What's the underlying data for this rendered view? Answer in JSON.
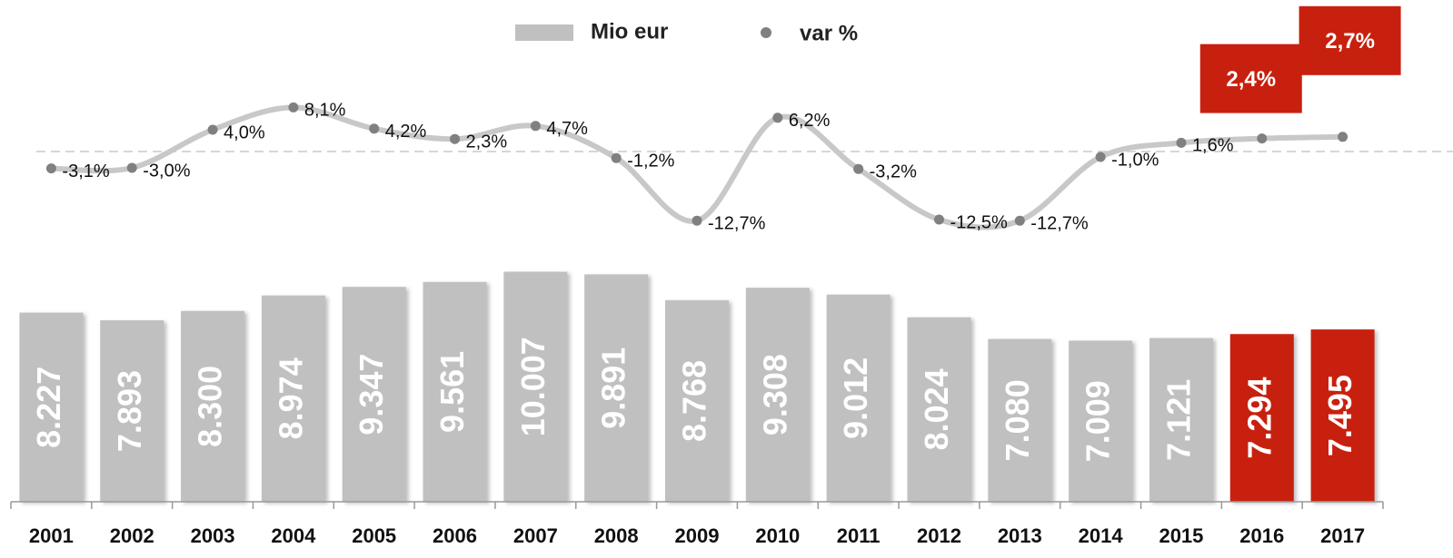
{
  "chart_data": {
    "type": "bar",
    "categories": [
      "2001",
      "2002",
      "2003",
      "2004",
      "2005",
      "2006",
      "2007",
      "2008",
      "2009",
      "2010",
      "2011",
      "2012",
      "2013",
      "2014",
      "2015",
      "2016",
      "2017"
    ],
    "series": [
      {
        "name": "Mio eur",
        "type": "bar",
        "color": "#c0c0c0",
        "colors": [
          "#c0c0c0",
          "#c0c0c0",
          "#c0c0c0",
          "#c0c0c0",
          "#c0c0c0",
          "#c0c0c0",
          "#c0c0c0",
          "#c0c0c0",
          "#c0c0c0",
          "#c0c0c0",
          "#c0c0c0",
          "#c0c0c0",
          "#c0c0c0",
          "#c0c0c0",
          "#c0c0c0",
          "#c8200e",
          "#c8200e"
        ],
        "values": [
          8227,
          7893,
          8300,
          8974,
          9347,
          9561,
          10007,
          9891,
          8768,
          9308,
          9012,
          8024,
          7080,
          7009,
          7121,
          7294,
          7495
        ],
        "value_labels": [
          "8.227",
          "7.893",
          "8.300",
          "8.974",
          "9.347",
          "9.561",
          "10.007",
          "9.891",
          "8.768",
          "9.308",
          "9.012",
          "8.024",
          "7.080",
          "7.009",
          "7.121",
          "7.294",
          "7.495"
        ]
      },
      {
        "name": "var %",
        "type": "line",
        "axis": "y2",
        "color": "#c8c8c8",
        "marker_color": "#808080",
        "values": [
          -3.1,
          -3.0,
          4.0,
          8.1,
          4.2,
          2.3,
          4.7,
          -1.2,
          -12.7,
          6.2,
          -3.2,
          -12.5,
          -12.7,
          -1.0,
          1.6,
          2.4,
          2.7
        ],
        "value_labels": [
          "-3,1%",
          "-3,0%",
          "4,0%",
          "8,1%",
          "4,2%",
          "2,3%",
          "4,7%",
          "-1,2%",
          "-12,7%",
          "6,2%",
          "-3,2%",
          "-12,5%",
          "-12,7%",
          "-1,0%",
          "1,6%",
          "2,4%",
          "2,7%"
        ]
      }
    ],
    "ylim": [
      0,
      12000
    ],
    "y2lim": [
      -16,
      12
    ]
  }
}
